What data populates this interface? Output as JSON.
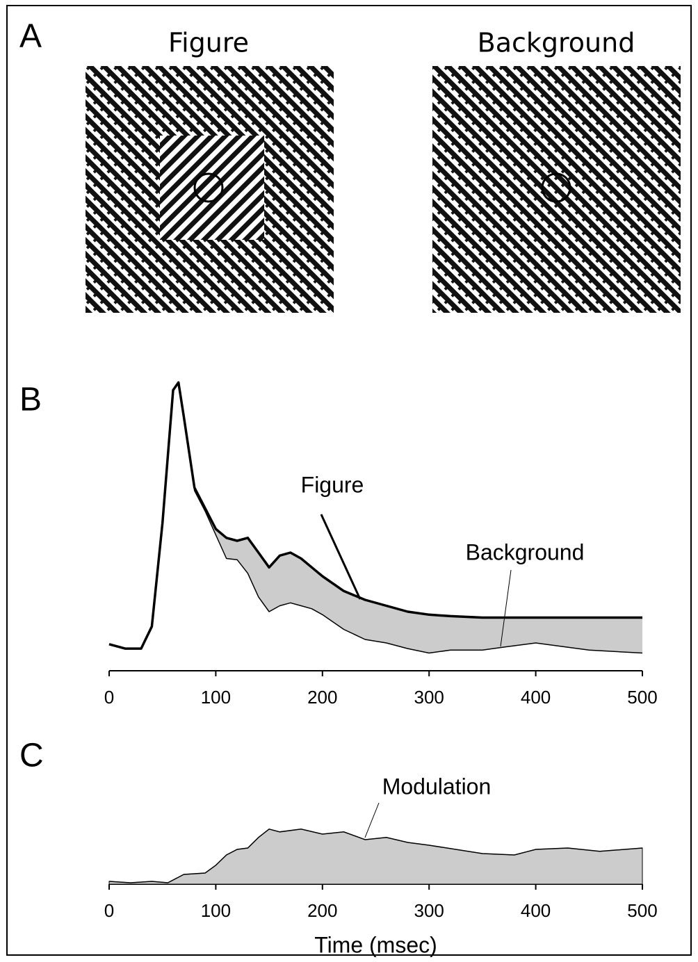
{
  "panel_a": {
    "label": "A",
    "titles": [
      "Figure",
      "Background"
    ]
  },
  "chart_data": [
    {
      "type": "line",
      "panel": "B",
      "x": [
        0,
        15,
        30,
        40,
        50,
        60,
        65,
        70,
        80,
        90,
        100,
        110,
        120,
        130,
        140,
        150,
        160,
        170,
        180,
        190,
        200,
        220,
        240,
        260,
        280,
        300,
        320,
        350,
        370,
        400,
        450,
        500
      ],
      "series": [
        {
          "name": "Figure",
          "color": "#000000",
          "values": [
            9,
            7.5,
            7.5,
            15,
            50,
            95,
            97.6,
            86,
            62,
            55,
            48,
            45,
            44,
            45,
            40,
            35,
            39,
            40,
            38,
            35,
            32,
            27,
            24,
            22,
            20,
            19,
            18.5,
            18,
            18,
            18,
            18,
            18
          ]
        },
        {
          "name": "Background",
          "color": "#000000",
          "values": [
            9,
            7.5,
            7.5,
            15,
            50,
            95,
            97.6,
            86,
            61,
            54,
            46,
            38,
            37.6,
            33,
            25,
            20,
            22,
            23,
            22,
            21,
            19,
            14,
            10.6,
            9.4,
            7.5,
            6,
            7,
            7,
            8,
            9.4,
            7,
            6
          ]
        }
      ],
      "fill_between": "#cccccc",
      "xlim": [
        0,
        500
      ],
      "xticks": [
        0,
        100,
        200,
        300,
        400,
        500
      ],
      "ylim": [
        0,
        100
      ]
    },
    {
      "type": "area",
      "panel": "C",
      "x": [
        0,
        20,
        40,
        55,
        70,
        90,
        100,
        110,
        120,
        130,
        140,
        150,
        160,
        180,
        200,
        220,
        240,
        260,
        280,
        300,
        350,
        380,
        400,
        430,
        460,
        500
      ],
      "series": [
        {
          "name": "Modulation",
          "color": "#cccccc",
          "values": [
            1,
            0.5,
            1,
            0.5,
            3.5,
            4,
            6.8,
            10.5,
            12.5,
            13,
            16.8,
            19.8,
            18.8,
            19.8,
            18,
            18.8,
            16,
            16.8,
            15,
            14,
            11,
            10.5,
            12.5,
            13,
            11.8,
            13
          ]
        }
      ],
      "xlim": [
        0,
        500
      ],
      "xticks": [
        0,
        100,
        200,
        300,
        400,
        500
      ],
      "ylim": [
        0,
        40
      ],
      "xlabel": "Time (msec)"
    }
  ]
}
